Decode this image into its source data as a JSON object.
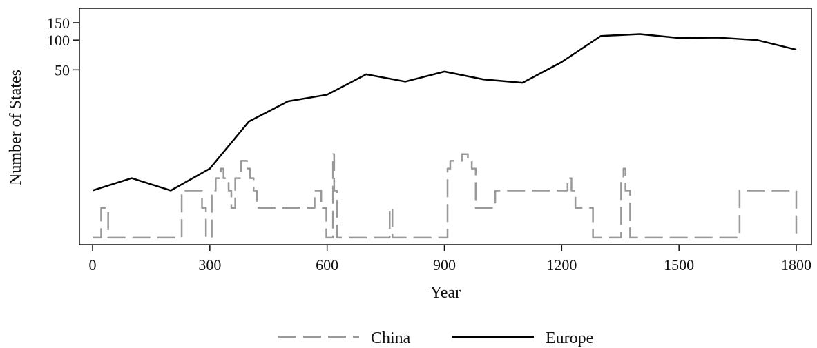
{
  "chart_data": {
    "type": "line",
    "title": "",
    "xlabel": "Year",
    "ylabel": "Number of States",
    "xlim": [
      -25,
      1825
    ],
    "x_ticks": [
      0,
      300,
      600,
      900,
      1200,
      1500,
      1800
    ],
    "y_scale": "log",
    "ylim": [
      0.85,
      210
    ],
    "y_ticks": [
      50,
      100,
      150
    ],
    "grid": false,
    "legend_position": "bottom",
    "series": [
      {
        "name": "China",
        "style": "dashed",
        "color": "#999999",
        "x": [
          0,
          18,
          22,
          35,
          40,
          220,
          228,
          265,
          280,
          290,
          296,
          300,
          305,
          315,
          322,
          328,
          335,
          340,
          348,
          355,
          365,
          380,
          395,
          403,
          412,
          420,
          440,
          532,
          568,
          585,
          598,
          605,
          615,
          618,
          625,
          755,
          760,
          767,
          895,
          908,
          915,
          925,
          945,
          960,
          970,
          980,
          1030,
          1210,
          1215,
          1225,
          1235,
          1275,
          1280,
          1345,
          1352,
          1358,
          1363,
          1375,
          1640,
          1655,
          1800
        ],
        "y": [
          1,
          1,
          2,
          2,
          1,
          1,
          3,
          3,
          2,
          1,
          1,
          1,
          3,
          4,
          4,
          5,
          4,
          4,
          3,
          2,
          4,
          6,
          5,
          4,
          3,
          2,
          2,
          2,
          3,
          2,
          1,
          1,
          7,
          3,
          1,
          1,
          2,
          1,
          1,
          5,
          6,
          6,
          7,
          6,
          5,
          2,
          3,
          3,
          4,
          3,
          2,
          2,
          1,
          1,
          4,
          5,
          3,
          1,
          1,
          3,
          1
        ]
      },
      {
        "name": "Europe",
        "style": "solid",
        "color": "#000000",
        "x": [
          0,
          100,
          200,
          300,
          400,
          500,
          600,
          700,
          800,
          900,
          1000,
          1100,
          1200,
          1300,
          1400,
          1500,
          1600,
          1700,
          1800
        ],
        "y": [
          3,
          4,
          3,
          5,
          15,
          24,
          28,
          45,
          38,
          48,
          40,
          37,
          60,
          110,
          115,
          105,
          106,
          100,
          80
        ]
      }
    ]
  }
}
